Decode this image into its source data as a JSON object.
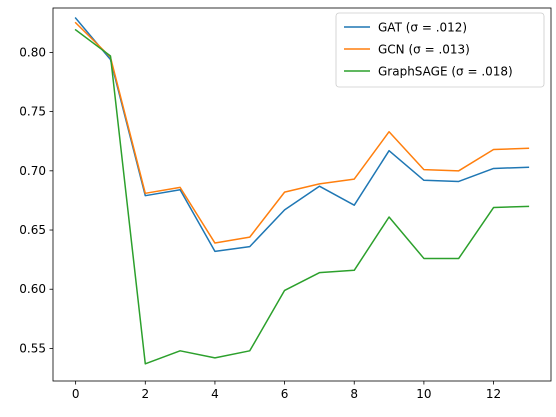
{
  "chart_data": {
    "type": "line",
    "title": "",
    "xlabel": "",
    "ylabel": "",
    "xlim": [
      -0.65,
      13.65
    ],
    "ylim": [
      0.5225,
      0.8375
    ],
    "x_ticks": [
      0,
      2,
      4,
      6,
      8,
      10,
      12
    ],
    "x_tick_labels": [
      "0",
      "2",
      "4",
      "6",
      "8",
      "10",
      "12"
    ],
    "y_ticks": [
      0.55,
      0.6,
      0.65,
      0.7,
      0.75,
      0.8
    ],
    "y_tick_labels": [
      "0.55",
      "0.60",
      "0.65",
      "0.70",
      "0.75",
      "0.80"
    ],
    "grid": false,
    "legend_position": "top-right",
    "x": [
      0,
      1,
      2,
      3,
      4,
      5,
      6,
      7,
      8,
      9,
      10,
      11,
      12,
      13
    ],
    "series": [
      {
        "name": "GAT (σ = .012)",
        "color": "#1f77b4",
        "values": [
          0.829,
          0.794,
          0.679,
          0.684,
          0.632,
          0.636,
          0.667,
          0.687,
          0.671,
          0.717,
          0.692,
          0.691,
          0.702,
          0.703
        ]
      },
      {
        "name": "GCN (σ = .013)",
        "color": "#ff7f0e",
        "values": [
          0.825,
          0.796,
          0.681,
          0.686,
          0.639,
          0.644,
          0.682,
          0.689,
          0.693,
          0.733,
          0.701,
          0.7,
          0.718,
          0.719
        ]
      },
      {
        "name": "GraphSAGE (σ = .018)",
        "color": "#2ca02c",
        "values": [
          0.819,
          0.797,
          0.537,
          0.548,
          0.542,
          0.548,
          0.599,
          0.614,
          0.616,
          0.661,
          0.626,
          0.626,
          0.669,
          0.67
        ]
      }
    ]
  }
}
